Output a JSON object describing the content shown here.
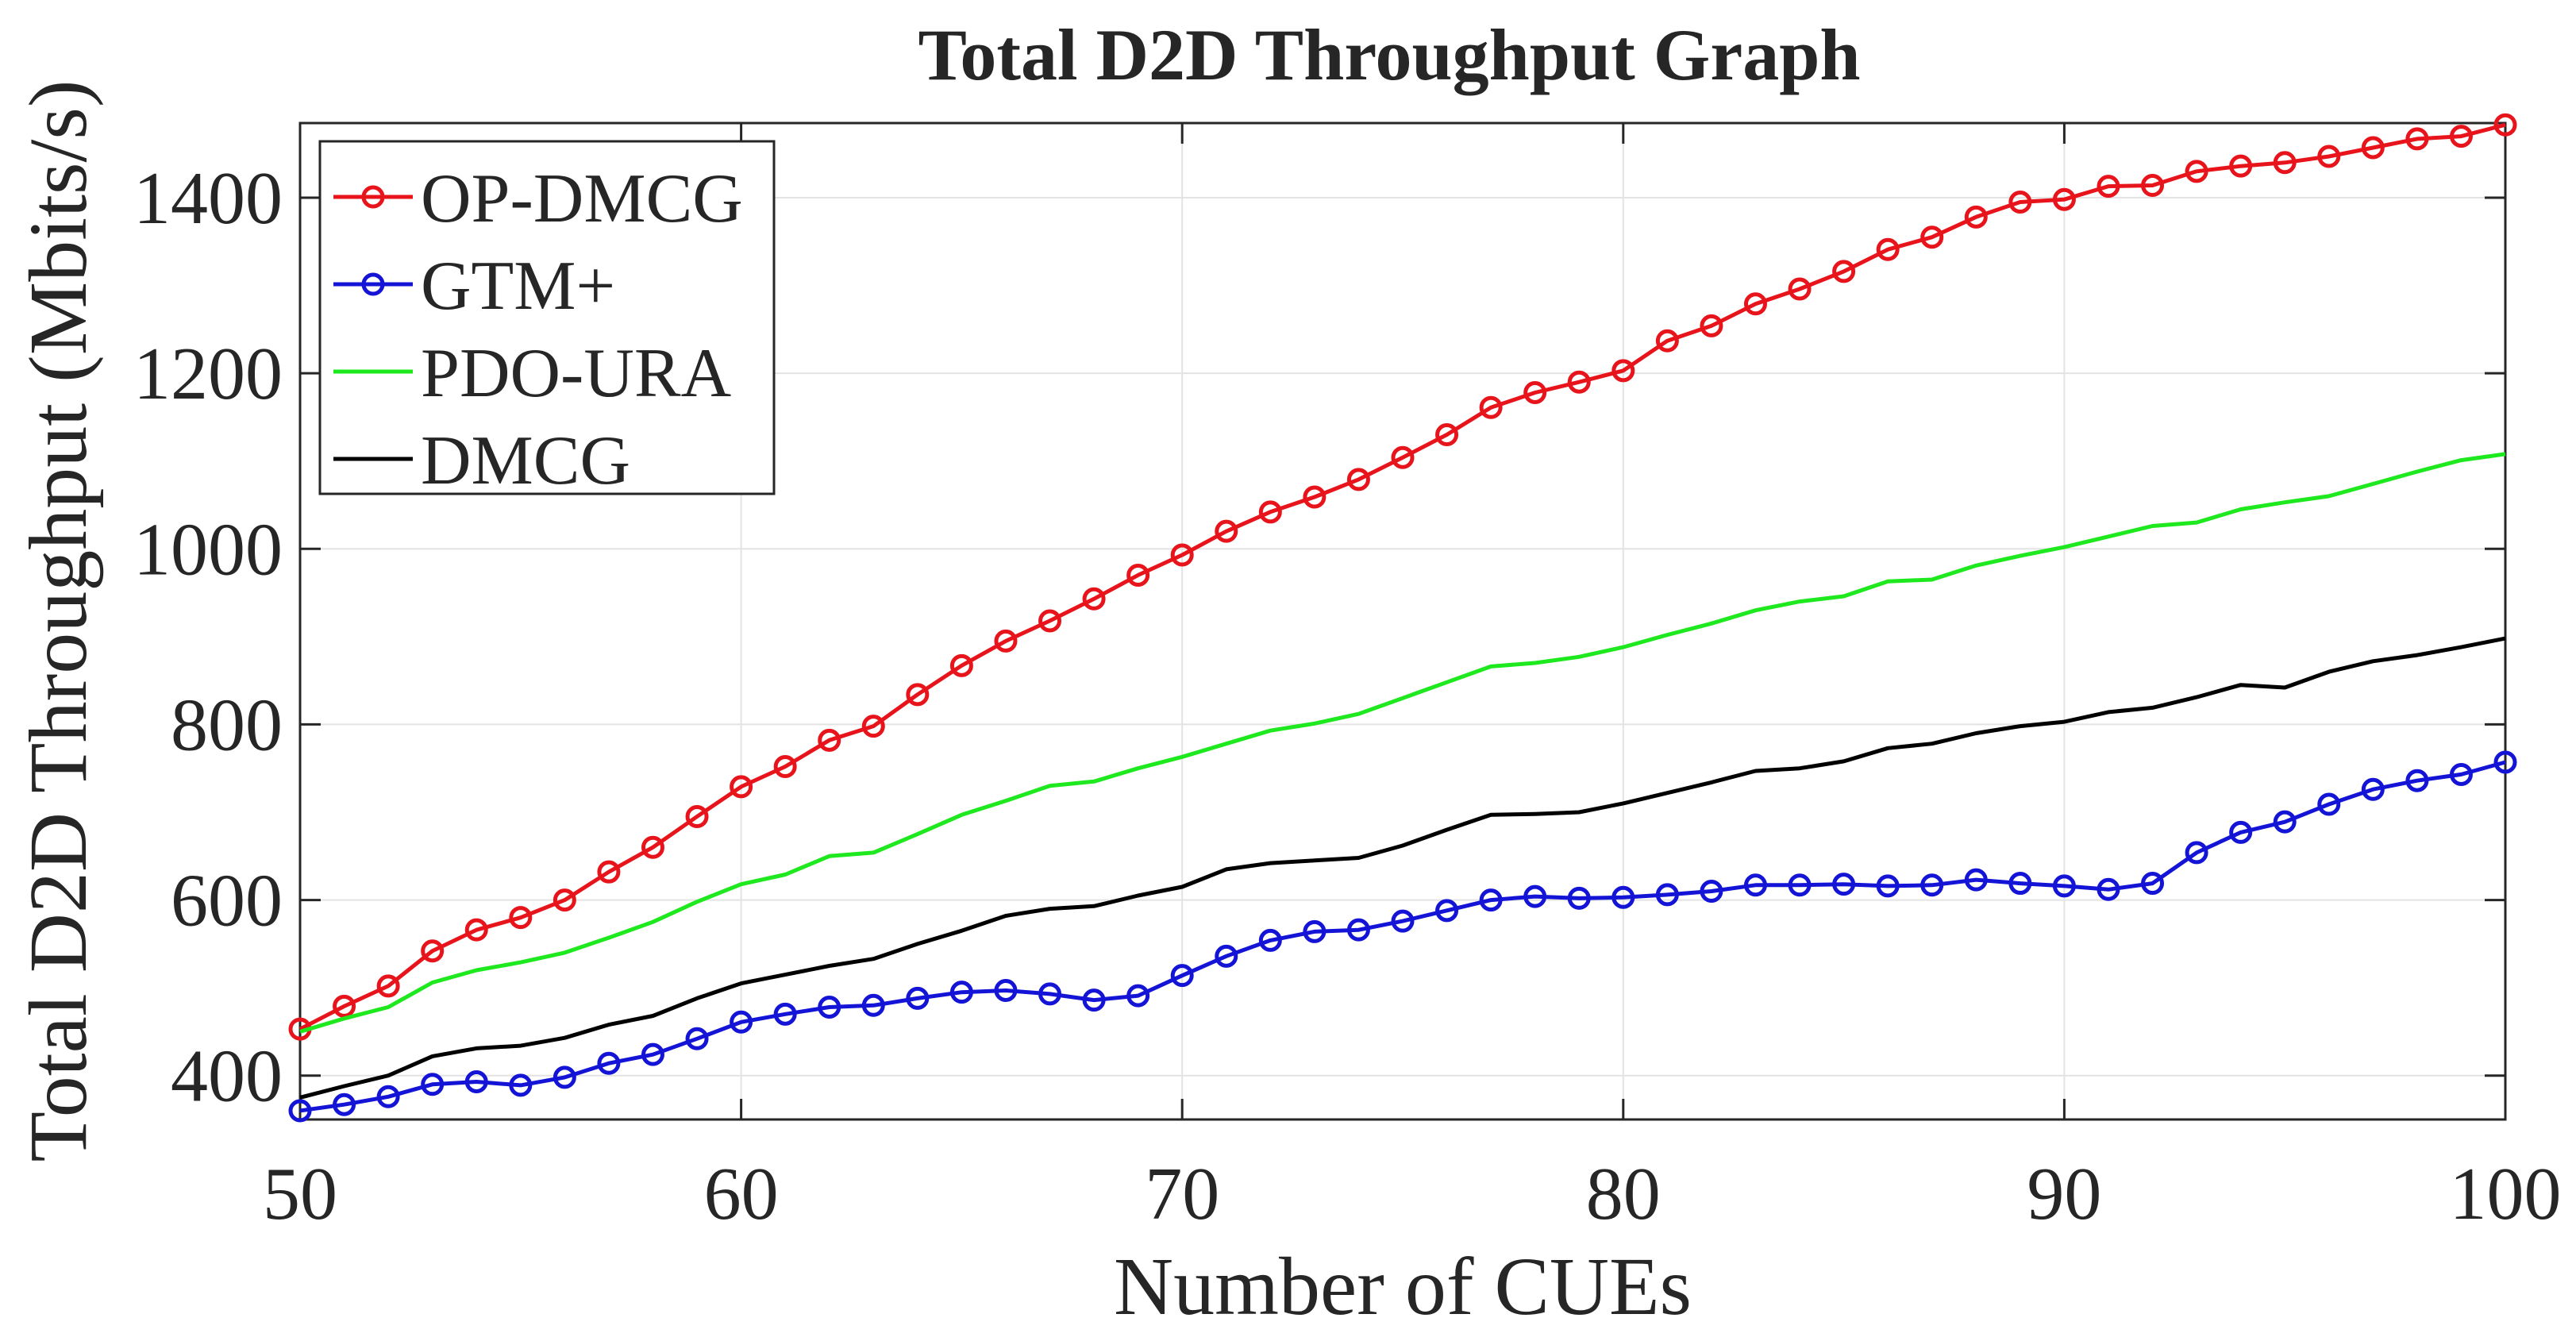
{
  "chart_data": {
    "type": "line",
    "title": "Total D2D Throughput Graph",
    "xlabel": "Number of CUEs",
    "ylabel": "Total D2D Throughput (Mbits/s)",
    "xlim": [
      50,
      100
    ],
    "ylim": [
      350,
      1485
    ],
    "xticks": [
      50,
      60,
      70,
      80,
      90,
      100
    ],
    "yticks": [
      400,
      600,
      800,
      1000,
      1200,
      1400
    ],
    "grid": true,
    "legend_position": "top-left",
    "x": [
      50,
      51,
      52,
      53,
      54,
      55,
      56,
      57,
      58,
      59,
      60,
      61,
      62,
      63,
      64,
      65,
      66,
      67,
      68,
      69,
      70,
      71,
      72,
      73,
      74,
      75,
      76,
      77,
      78,
      79,
      80,
      81,
      82,
      83,
      84,
      85,
      86,
      87,
      88,
      89,
      90,
      91,
      92,
      93,
      94,
      95,
      96,
      97,
      98,
      99,
      100
    ],
    "series": [
      {
        "name": "OP-DMCG",
        "color": "#e8141b",
        "marker": "circle",
        "values": [
          453,
          479,
          502,
          542,
          566,
          580,
          600,
          632,
          660,
          695,
          729,
          752,
          782,
          798,
          834,
          867,
          895,
          918,
          943,
          970,
          993,
          1020,
          1042,
          1059,
          1079,
          1104,
          1130,
          1161,
          1178,
          1190,
          1203,
          1237,
          1254,
          1279,
          1296,
          1316,
          1341,
          1355,
          1378,
          1395,
          1398,
          1413,
          1414,
          1430,
          1436,
          1440,
          1447,
          1457,
          1467,
          1470,
          1483
        ]
      },
      {
        "name": "GTM+",
        "color": "#1414d6",
        "marker": "circle",
        "values": [
          360,
          367,
          376,
          390,
          393,
          389,
          398,
          414,
          424,
          442,
          461,
          470,
          478,
          480,
          488,
          495,
          497,
          493,
          486,
          491,
          514,
          536,
          554,
          564,
          566,
          576,
          588,
          600,
          604,
          602,
          603,
          606,
          610,
          617,
          617,
          618,
          616,
          617,
          623,
          619,
          616,
          612,
          619,
          654,
          677,
          689,
          709,
          726,
          736,
          743,
          757
        ]
      },
      {
        "name": "PDO-URA",
        "color": "#1ee81e",
        "marker": "none",
        "values": [
          450,
          465,
          478,
          506,
          520,
          529,
          540,
          557,
          575,
          598,
          618,
          629,
          650,
          654,
          675,
          697,
          713,
          730,
          735,
          750,
          763,
          778,
          793,
          801,
          812,
          830,
          848,
          866,
          870,
          877,
          888,
          902,
          915,
          930,
          940,
          946,
          963,
          965,
          981,
          992,
          1002,
          1014,
          1026,
          1030,
          1045,
          1053,
          1060,
          1074,
          1088,
          1101,
          1108
        ]
      },
      {
        "name": "DMCG",
        "color": "#000000",
        "marker": "none",
        "values": [
          375,
          388,
          400,
          422,
          431,
          434,
          443,
          458,
          468,
          488,
          505,
          515,
          525,
          533,
          550,
          565,
          582,
          590,
          593,
          605,
          615,
          635,
          642,
          645,
          648,
          662,
          680,
          697,
          698,
          700,
          710,
          722,
          734,
          747,
          750,
          758,
          773,
          778,
          790,
          798,
          803,
          814,
          819,
          831,
          845,
          842,
          860,
          872,
          879,
          888,
          898
        ]
      }
    ]
  }
}
